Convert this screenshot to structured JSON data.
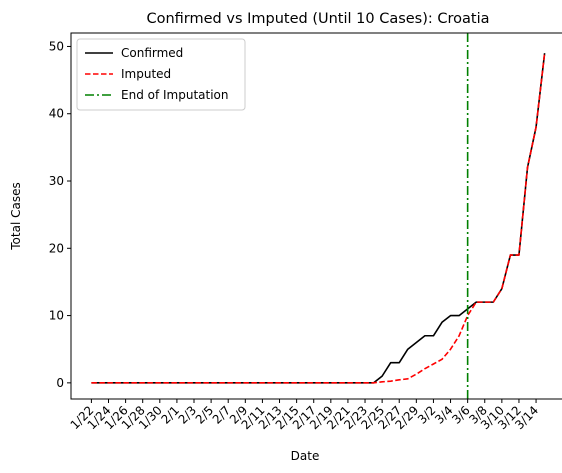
{
  "chart_data": {
    "type": "line",
    "title": "Confirmed vs Imputed (Until 10 Cases): Croatia",
    "xlabel": "Date",
    "ylabel": "Total Cases",
    "x": [
      "1/22",
      "1/23",
      "1/24",
      "1/25",
      "1/26",
      "1/27",
      "1/28",
      "1/29",
      "1/30",
      "1/31",
      "2/1",
      "2/2",
      "2/3",
      "2/4",
      "2/5",
      "2/6",
      "2/7",
      "2/8",
      "2/9",
      "2/10",
      "2/11",
      "2/12",
      "2/13",
      "2/14",
      "2/15",
      "2/16",
      "2/17",
      "2/18",
      "2/19",
      "2/20",
      "2/21",
      "2/22",
      "2/23",
      "2/24",
      "2/25",
      "2/26",
      "2/27",
      "2/28",
      "2/29",
      "3/1",
      "3/2",
      "3/3",
      "3/4",
      "3/5",
      "3/6",
      "3/7",
      "3/8",
      "3/9",
      "3/10",
      "3/11",
      "3/12",
      "3/13",
      "3/14",
      "3/15"
    ],
    "x_tick_labels": [
      "1/22",
      "1/24",
      "1/26",
      "1/28",
      "1/30",
      "2/1",
      "2/3",
      "2/5",
      "2/7",
      "2/9",
      "2/11",
      "2/13",
      "2/15",
      "2/17",
      "2/19",
      "2/21",
      "2/23",
      "2/25",
      "2/27",
      "2/29",
      "3/2",
      "3/4",
      "3/6",
      "3/8",
      "3/10",
      "3/12",
      "3/14"
    ],
    "ylim": [
      -2.4,
      52
    ],
    "y_ticks": [
      0,
      10,
      20,
      30,
      40,
      50
    ],
    "grid": false,
    "legend_placement": "top-left",
    "series": [
      {
        "name": "Confirmed",
        "color": "#000000",
        "style": "solid",
        "values": [
          0,
          0,
          0,
          0,
          0,
          0,
          0,
          0,
          0,
          0,
          0,
          0,
          0,
          0,
          0,
          0,
          0,
          0,
          0,
          0,
          0,
          0,
          0,
          0,
          0,
          0,
          0,
          0,
          0,
          0,
          0,
          0,
          0,
          0,
          1,
          3,
          3,
          5,
          6,
          7,
          7,
          9,
          10,
          10,
          11,
          12,
          12,
          12,
          14,
          19,
          19,
          32,
          38,
          49
        ]
      },
      {
        "name": "Imputed",
        "color": "#ff0000",
        "style": "dashed",
        "values": [
          0,
          0,
          0,
          0,
          0,
          0,
          0,
          0,
          0,
          0,
          0,
          0,
          0,
          0,
          0,
          0,
          0,
          0,
          0,
          0,
          0,
          0,
          0,
          0,
          0,
          0,
          0,
          0,
          0,
          0,
          0,
          0,
          0,
          0,
          0.15,
          0.25,
          0.45,
          0.6,
          1.3,
          2.1,
          2.8,
          3.5,
          5.0,
          7.0,
          10,
          12,
          12,
          12,
          14,
          19,
          19,
          32,
          38,
          49
        ]
      }
    ],
    "vlines": [
      {
        "name": "End of Imputation",
        "x": "3/6",
        "color": "#008000",
        "style": "dashdot"
      }
    ]
  }
}
